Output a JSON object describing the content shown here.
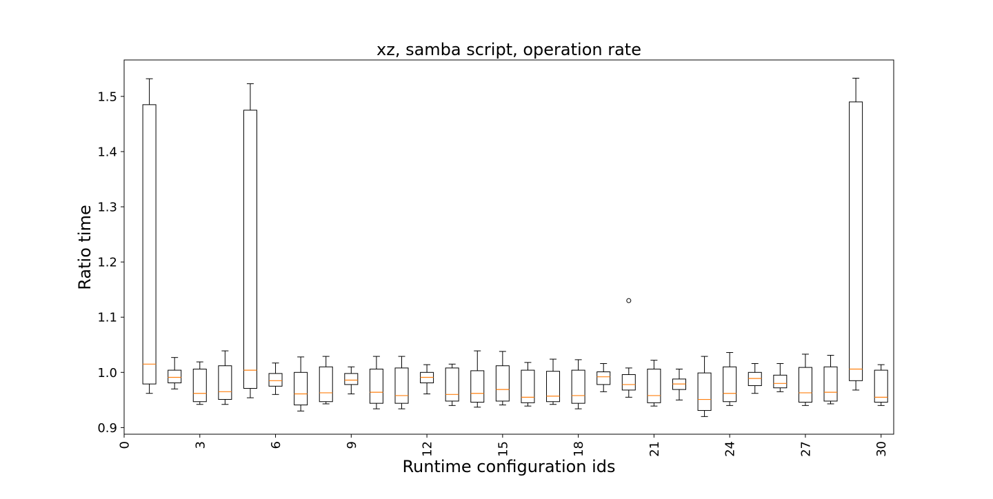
{
  "chart_data": {
    "type": "box",
    "title": "xz, samba script, operation rate",
    "xlabel": "Runtime configuration ids",
    "ylabel": "Ratio time",
    "xlim": [
      0,
      30.5
    ],
    "ylim": [
      0.888,
      1.566
    ],
    "xticks": [
      0,
      3,
      6,
      9,
      12,
      15,
      18,
      21,
      24,
      27,
      30
    ],
    "xtick_labels": [
      "0",
      "3",
      "6",
      "9",
      "12",
      "15",
      "18",
      "21",
      "24",
      "27",
      "30"
    ],
    "yticks": [
      0.9,
      1.0,
      1.1,
      1.2,
      1.3,
      1.4,
      1.5
    ],
    "ytick_labels": [
      "0.9",
      "1.0",
      "1.1",
      "1.2",
      "1.3",
      "1.4",
      "1.5"
    ],
    "grid": false,
    "median_color": "#ff7f0e",
    "box_color": "#000000",
    "boxes": [
      {
        "id": 1,
        "whislo": 0.962,
        "q1": 0.979,
        "med": 1.015,
        "q3": 1.485,
        "whishi": 1.532,
        "fliers": []
      },
      {
        "id": 2,
        "whislo": 0.97,
        "q1": 0.981,
        "med": 0.991,
        "q3": 1.004,
        "whishi": 1.027,
        "fliers": []
      },
      {
        "id": 3,
        "whislo": 0.942,
        "q1": 0.947,
        "med": 0.962,
        "q3": 1.006,
        "whishi": 1.019,
        "fliers": []
      },
      {
        "id": 4,
        "whislo": 0.942,
        "q1": 0.951,
        "med": 0.965,
        "q3": 1.012,
        "whishi": 1.039,
        "fliers": []
      },
      {
        "id": 5,
        "whislo": 0.954,
        "q1": 0.971,
        "med": 1.004,
        "q3": 1.475,
        "whishi": 1.523,
        "fliers": []
      },
      {
        "id": 6,
        "whislo": 0.96,
        "q1": 0.975,
        "med": 0.985,
        "q3": 0.998,
        "whishi": 1.017,
        "fliers": []
      },
      {
        "id": 7,
        "whislo": 0.93,
        "q1": 0.941,
        "med": 0.961,
        "q3": 1.0,
        "whishi": 1.028,
        "fliers": []
      },
      {
        "id": 8,
        "whislo": 0.943,
        "q1": 0.947,
        "med": 0.963,
        "q3": 1.01,
        "whishi": 1.029,
        "fliers": []
      },
      {
        "id": 9,
        "whislo": 0.961,
        "q1": 0.978,
        "med": 0.986,
        "q3": 0.998,
        "whishi": 1.01,
        "fliers": []
      },
      {
        "id": 10,
        "whislo": 0.934,
        "q1": 0.944,
        "med": 0.964,
        "q3": 1.006,
        "whishi": 1.029,
        "fliers": []
      },
      {
        "id": 11,
        "whislo": 0.934,
        "q1": 0.944,
        "med": 0.958,
        "q3": 1.008,
        "whishi": 1.029,
        "fliers": []
      },
      {
        "id": 12,
        "whislo": 0.961,
        "q1": 0.981,
        "med": 0.991,
        "q3": 1.0,
        "whishi": 1.014,
        "fliers": []
      },
      {
        "id": 13,
        "whislo": 0.94,
        "q1": 0.948,
        "med": 0.96,
        "q3": 1.008,
        "whishi": 1.015,
        "fliers": []
      },
      {
        "id": 14,
        "whislo": 0.937,
        "q1": 0.946,
        "med": 0.962,
        "q3": 1.003,
        "whishi": 1.039,
        "fliers": []
      },
      {
        "id": 15,
        "whislo": 0.941,
        "q1": 0.948,
        "med": 0.969,
        "q3": 1.012,
        "whishi": 1.038,
        "fliers": []
      },
      {
        "id": 16,
        "whislo": 0.939,
        "q1": 0.945,
        "med": 0.955,
        "q3": 1.004,
        "whishi": 1.018,
        "fliers": []
      },
      {
        "id": 17,
        "whislo": 0.942,
        "q1": 0.947,
        "med": 0.957,
        "q3": 1.002,
        "whishi": 1.024,
        "fliers": []
      },
      {
        "id": 18,
        "whislo": 0.934,
        "q1": 0.944,
        "med": 0.958,
        "q3": 1.004,
        "whishi": 1.023,
        "fliers": []
      },
      {
        "id": 19,
        "whislo": 0.965,
        "q1": 0.978,
        "med": 0.992,
        "q3": 1.001,
        "whishi": 1.016,
        "fliers": []
      },
      {
        "id": 20,
        "whislo": 0.955,
        "q1": 0.968,
        "med": 0.978,
        "q3": 0.996,
        "whishi": 1.008,
        "fliers": [
          1.13
        ]
      },
      {
        "id": 21,
        "whislo": 0.939,
        "q1": 0.945,
        "med": 0.958,
        "q3": 1.006,
        "whishi": 1.022,
        "fliers": []
      },
      {
        "id": 22,
        "whislo": 0.95,
        "q1": 0.969,
        "med": 0.979,
        "q3": 0.988,
        "whishi": 1.006,
        "fliers": []
      },
      {
        "id": 23,
        "whislo": 0.92,
        "q1": 0.931,
        "med": 0.951,
        "q3": 0.999,
        "whishi": 1.029,
        "fliers": []
      },
      {
        "id": 24,
        "whislo": 0.94,
        "q1": 0.947,
        "med": 0.962,
        "q3": 1.01,
        "whishi": 1.036,
        "fliers": []
      },
      {
        "id": 25,
        "whislo": 0.962,
        "q1": 0.976,
        "med": 0.989,
        "q3": 1.0,
        "whishi": 1.016,
        "fliers": []
      },
      {
        "id": 26,
        "whislo": 0.965,
        "q1": 0.972,
        "med": 0.98,
        "q3": 0.995,
        "whishi": 1.016,
        "fliers": []
      },
      {
        "id": 27,
        "whislo": 0.94,
        "q1": 0.946,
        "med": 0.963,
        "q3": 1.009,
        "whishi": 1.033,
        "fliers": []
      },
      {
        "id": 28,
        "whislo": 0.943,
        "q1": 0.948,
        "med": 0.964,
        "q3": 1.01,
        "whishi": 1.031,
        "fliers": []
      },
      {
        "id": 29,
        "whislo": 0.968,
        "q1": 0.985,
        "med": 1.006,
        "q3": 1.49,
        "whishi": 1.533,
        "fliers": []
      },
      {
        "id": 30,
        "whislo": 0.94,
        "q1": 0.946,
        "med": 0.955,
        "q3": 1.004,
        "whishi": 1.014,
        "fliers": []
      }
    ]
  }
}
